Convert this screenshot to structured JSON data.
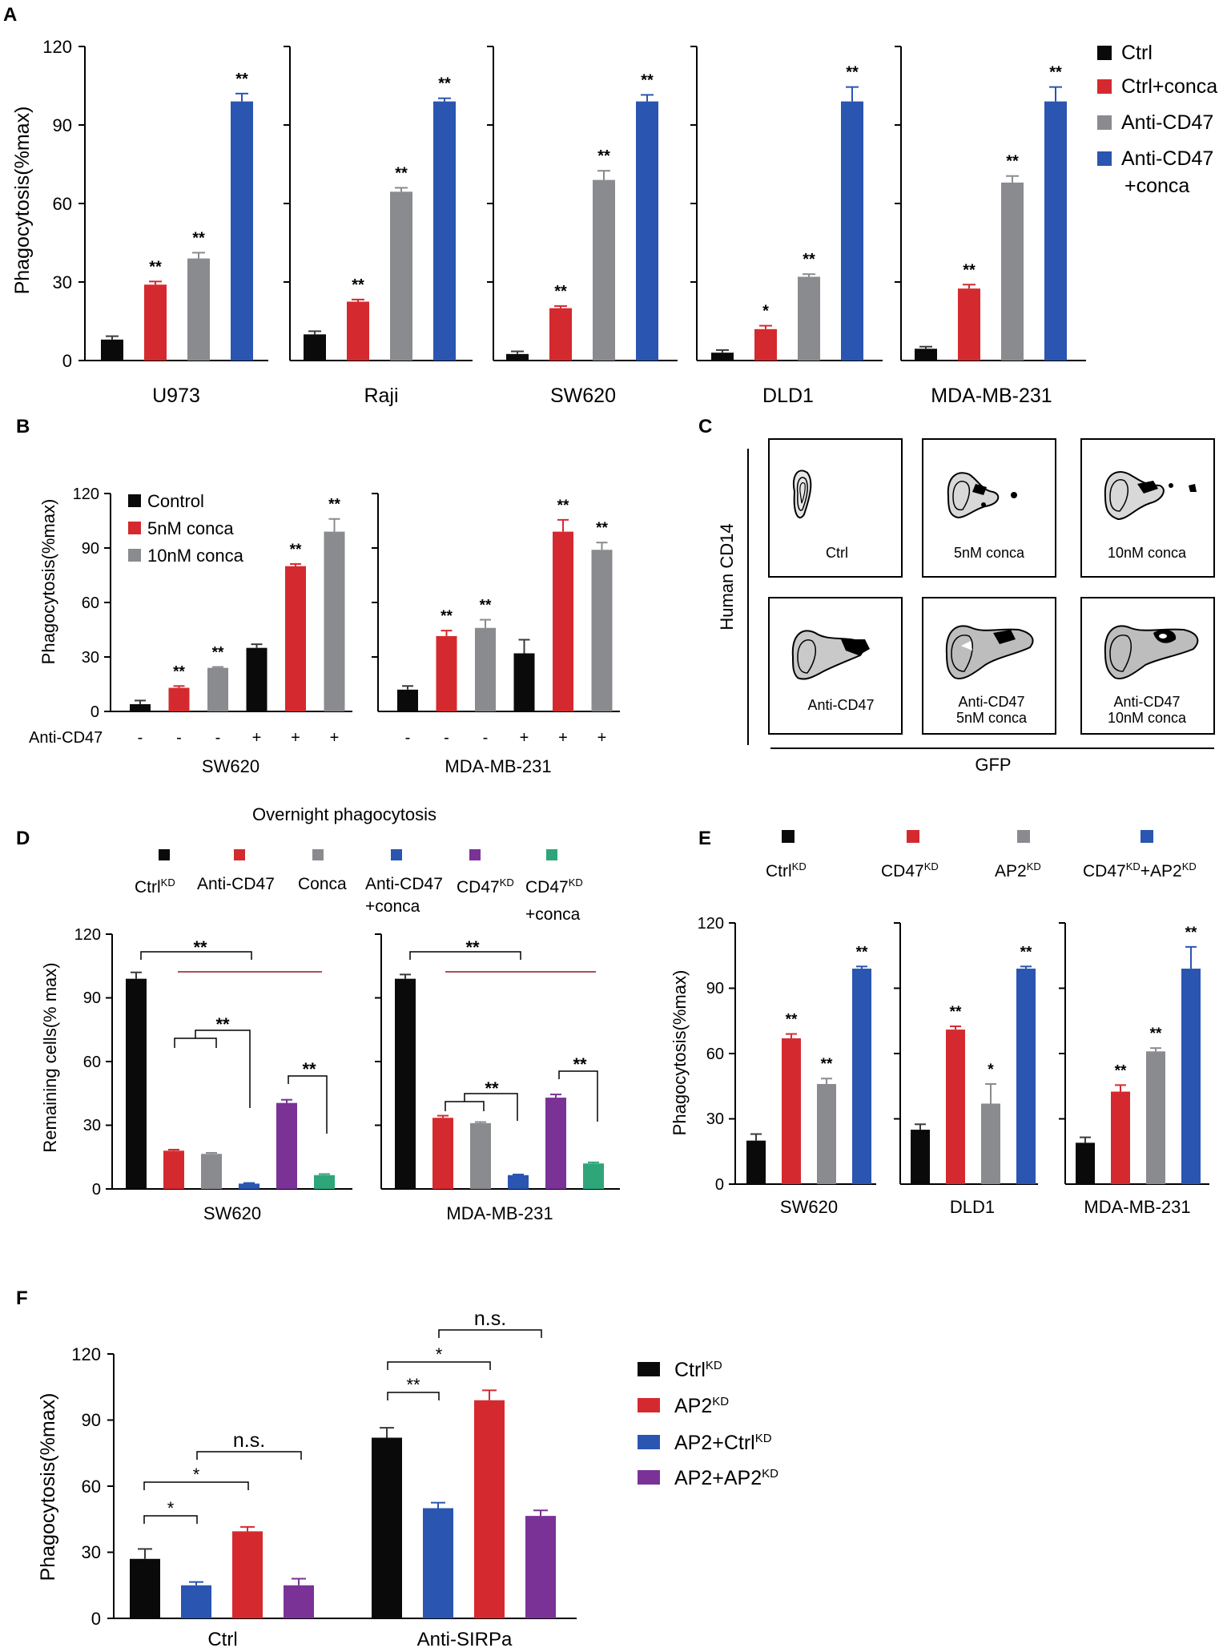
{
  "colors": {
    "black": "#0a0a0a",
    "red": "#d42a2f",
    "gray": "#8a8b8e",
    "blue": "#2a55b0",
    "purple": "#7a3296",
    "green": "#2ea67a",
    "err_black": "#3a3a3a",
    "err_red": "#d42a2f",
    "err_gray": "#8a8b8e",
    "err_blue": "#2a55b0",
    "err_purple": "#7a3296",
    "err_green": "#2ea67a"
  },
  "chart_data": [
    {
      "id": "A",
      "panel_label": "A",
      "type": "bar",
      "ylabel": "Phagocytosis(%max)",
      "ylim": [
        0,
        120
      ],
      "yticks": [
        "0",
        "30",
        "60",
        "90",
        "120"
      ],
      "legend": [
        {
          "label": "Ctrl",
          "color": "black"
        },
        {
          "label": "Ctrl+conca",
          "color": "red"
        },
        {
          "label": "Anti-CD47",
          "color": "gray"
        },
        {
          "label": "Anti-CD47",
          "label2": "+conca",
          "color": "blue"
        }
      ],
      "groups": [
        {
          "name": "U973",
          "values": [
            8,
            29,
            39,
            99
          ],
          "errors": [
            1.3,
            1.2,
            2.2,
            3
          ],
          "colors": [
            "black",
            "red",
            "gray",
            "blue"
          ],
          "sig": [
            "",
            "**",
            "**",
            "**"
          ]
        },
        {
          "name": "Raji",
          "values": [
            10,
            22.5,
            64.5,
            99
          ],
          "errors": [
            1.2,
            0.8,
            1.5,
            1.2
          ],
          "colors": [
            "black",
            "red",
            "gray",
            "blue"
          ],
          "sig": [
            "",
            "**",
            "**",
            "**"
          ]
        },
        {
          "name": "SW620",
          "values": [
            2.5,
            20,
            69,
            99
          ],
          "errors": [
            1,
            0.8,
            3.5,
            2.5
          ],
          "colors": [
            "black",
            "red",
            "gray",
            "blue"
          ],
          "sig": [
            "",
            "**",
            "**",
            "**"
          ]
        },
        {
          "name": "DLD1",
          "values": [
            3,
            12,
            32,
            99
          ],
          "errors": [
            1,
            1.3,
            1,
            5.5
          ],
          "colors": [
            "black",
            "red",
            "gray",
            "blue"
          ],
          "sig": [
            "",
            "*",
            "**",
            "**"
          ]
        },
        {
          "name": "MDA-MB-231",
          "values": [
            4.5,
            27.5,
            68,
            99
          ],
          "errors": [
            0.8,
            1.5,
            2.5,
            5.5
          ],
          "colors": [
            "black",
            "red",
            "gray",
            "blue"
          ],
          "sig": [
            "",
            "**",
            "**",
            "**"
          ]
        }
      ]
    },
    {
      "id": "B",
      "panel_label": "B",
      "type": "bar",
      "ylabel": "Phagocytosis(%max)",
      "ylim": [
        0,
        120
      ],
      "yticks": [
        "0",
        "30",
        "60",
        "90",
        "120"
      ],
      "legend": [
        {
          "label": "Control",
          "color": "black"
        },
        {
          "label": "5nM conca",
          "color": "red"
        },
        {
          "label": "10nM conca",
          "color": "gray"
        }
      ],
      "treatment_label": "Anti-CD47",
      "treatment_marks": [
        "-",
        "-",
        "-",
        "+",
        "+",
        "+"
      ],
      "groups": [
        {
          "name": "SW620",
          "values": [
            4,
            13,
            24,
            35,
            80,
            99
          ],
          "errors": [
            2,
            1,
            0.5,
            2,
            1.2,
            7
          ],
          "colors": [
            "black",
            "red",
            "gray",
            "black",
            "red",
            "gray"
          ],
          "sig": [
            "",
            "**",
            "**",
            "",
            "**",
            "**"
          ]
        },
        {
          "name": "MDA-MB-231",
          "values": [
            12,
            41.5,
            46,
            32,
            99,
            89
          ],
          "errors": [
            2,
            3,
            4.5,
            7.5,
            6.5,
            4
          ],
          "colors": [
            "black",
            "red",
            "gray",
            "black",
            "red",
            "gray"
          ],
          "sig": [
            "",
            "**",
            "**",
            "",
            "**",
            "**"
          ]
        }
      ]
    },
    {
      "id": "C",
      "panel_label": "C",
      "type": "table",
      "ylabel": "Human CD14",
      "xlabel": "GFP",
      "plots": [
        {
          "label": "Ctrl"
        },
        {
          "label": "5nM conca"
        },
        {
          "label": "10nM conca"
        },
        {
          "label": "Anti-CD47"
        },
        {
          "label": "Anti-CD47",
          "label2": "5nM conca"
        },
        {
          "label": "Anti-CD47",
          "label2": "10nM conca"
        }
      ]
    },
    {
      "id": "D",
      "panel_label": "D",
      "type": "bar",
      "title": "Overnight phagocytosis",
      "ylabel": "Remaining cells(% max)",
      "ylim": [
        0,
        120
      ],
      "yticks": [
        "0",
        "30",
        "60",
        "90",
        "120"
      ],
      "legend": [
        {
          "label": "Ctrl",
          "sup": "KD",
          "color": "black"
        },
        {
          "label": "Anti-CD47",
          "color": "red"
        },
        {
          "label": "Conca",
          "color": "gray"
        },
        {
          "label": "Anti-CD47",
          "label2": "+conca",
          "color": "blue"
        },
        {
          "label": "CD47",
          "sup": "KD",
          "color": "purple"
        },
        {
          "label": "CD47",
          "sup": "KD",
          "label2": "+conca",
          "color": "green"
        }
      ],
      "groups": [
        {
          "name": "SW620",
          "values": [
            99,
            18,
            16.5,
            2.5,
            40.5,
            6.5
          ],
          "errors": [
            3,
            0.5,
            0.5,
            0.3,
            1.5,
            0.5
          ],
          "colors": [
            "black",
            "red",
            "gray",
            "blue",
            "purple",
            "green"
          ],
          "sig": [
            "**",
            "**",
            "**"
          ]
        },
        {
          "name": "MDA-MB-231",
          "values": [
            99,
            33.5,
            31,
            6.5,
            43,
            12
          ],
          "errors": [
            2,
            1,
            0.5,
            0.3,
            1.5,
            0.5
          ],
          "colors": [
            "black",
            "red",
            "gray",
            "blue",
            "purple",
            "green"
          ],
          "sig": [
            "**",
            "**",
            "**"
          ]
        }
      ]
    },
    {
      "id": "E",
      "panel_label": "E",
      "type": "bar",
      "ylabel": "Phagocytosis(%max)",
      "ylim": [
        0,
        120
      ],
      "yticks": [
        "0",
        "30",
        "60",
        "90",
        "120"
      ],
      "legend": [
        {
          "label": "Ctrl",
          "sup": "KD",
          "color": "black"
        },
        {
          "label": "CD47",
          "sup": "KD",
          "color": "red"
        },
        {
          "label": "AP2",
          "sup": "KD",
          "color": "gray"
        },
        {
          "label": "CD47",
          "sup": "KD",
          "label2": "+AP2",
          "sup2": "KD",
          "color": "blue"
        }
      ],
      "groups": [
        {
          "name": "SW620",
          "values": [
            20,
            67,
            46,
            99
          ],
          "errors": [
            3,
            2,
            2.5,
            1
          ],
          "colors": [
            "black",
            "red",
            "gray",
            "blue"
          ],
          "sig": [
            "",
            "**",
            "**",
            "**"
          ]
        },
        {
          "name": "DLD1",
          "values": [
            25,
            71,
            37,
            99
          ],
          "errors": [
            2.5,
            1.5,
            9,
            1
          ],
          "colors": [
            "black",
            "red",
            "gray",
            "blue"
          ],
          "sig": [
            "",
            "**",
            "*",
            "**"
          ]
        },
        {
          "name": "MDA-MB-231",
          "values": [
            19,
            42.5,
            61,
            99
          ],
          "errors": [
            2.5,
            3,
            1.5,
            10
          ],
          "colors": [
            "black",
            "red",
            "gray",
            "blue"
          ],
          "sig": [
            "",
            "**",
            "**",
            "**"
          ]
        }
      ]
    },
    {
      "id": "F",
      "panel_label": "F",
      "type": "bar",
      "ylabel": "Phagocytosis(%max)",
      "ylim": [
        0,
        120
      ],
      "yticks": [
        "0",
        "30",
        "60",
        "90",
        "120"
      ],
      "legend": [
        {
          "label": "Ctrl",
          "sup": "KD",
          "color": "black"
        },
        {
          "label": "AP2",
          "sup": "KD",
          "color": "red"
        },
        {
          "label": "AP2+Ctrl",
          "sup": "KD",
          "color": "blue"
        },
        {
          "label": "AP2+AP2",
          "sup": "KD",
          "color": "purple"
        }
      ],
      "groups": [
        {
          "name": "Ctrl",
          "values": [
            27,
            15,
            39.5,
            15
          ],
          "errors": [
            4.5,
            1.5,
            2,
            3
          ],
          "colors": [
            "black",
            "blue",
            "red",
            "purple"
          ],
          "sig": [
            "*",
            "*",
            "n.s."
          ]
        },
        {
          "name": "Anti-SIRPa",
          "values": [
            82,
            50,
            99,
            46.5
          ],
          "errors": [
            4.5,
            2.5,
            4.5,
            2.5
          ],
          "colors": [
            "black",
            "blue",
            "red",
            "purple"
          ],
          "sig": [
            "**",
            "*",
            "n.s."
          ]
        }
      ]
    }
  ]
}
